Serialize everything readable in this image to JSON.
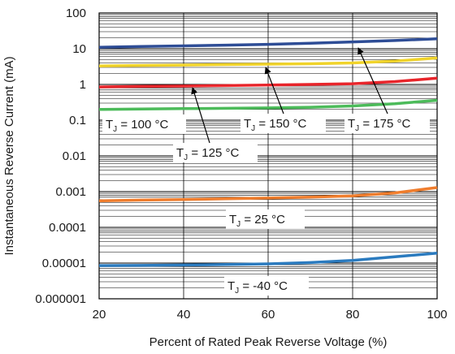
{
  "chart_data": {
    "type": "line",
    "xlabel": "Percent of Rated Peak Reverse Voltage (%)",
    "ylabel": "Instantaneous Reverse Current (mA)",
    "xlim": [
      20,
      100
    ],
    "ylim": [
      1e-06,
      100
    ],
    "yscale": "log",
    "grid": true,
    "x_ticks": [
      "20",
      "40",
      "60",
      "80",
      "100"
    ],
    "y_ticks": [
      "0.000001",
      "0.00001",
      "0.0001",
      "0.001",
      "0.01",
      "0.1",
      "1",
      "10",
      "100"
    ],
    "x": [
      20,
      30,
      40,
      50,
      60,
      70,
      80,
      90,
      100
    ],
    "series": [
      {
        "label_main": "T",
        "label_sub": "J",
        "label_rest": " = 175 °C",
        "color": "#2e4d96",
        "values": [
          11,
          11.5,
          12,
          12.6,
          13.3,
          14.2,
          15.5,
          17,
          19
        ]
      },
      {
        "label_main": "T",
        "label_sub": "J",
        "label_rest": " = 150 °C",
        "color": "#f0d32a",
        "values": [
          3.3,
          3.4,
          3.5,
          3.6,
          3.7,
          3.8,
          4.0,
          4.5,
          5.5
        ]
      },
      {
        "label_main": "T",
        "label_sub": "J",
        "label_rest": " = 125 °C",
        "color": "#e8252b",
        "values": [
          0.85,
          0.88,
          0.9,
          0.93,
          0.96,
          1.0,
          1.05,
          1.2,
          1.5
        ]
      },
      {
        "label_main": "T",
        "label_sub": "J",
        "label_rest": " = 100 °C",
        "color": "#4cbb5a",
        "values": [
          0.2,
          0.205,
          0.21,
          0.215,
          0.22,
          0.23,
          0.25,
          0.29,
          0.36
        ]
      },
      {
        "label_main": "T",
        "label_sub": "J",
        "label_rest": " = 25 °C",
        "color": "#ef7d2d",
        "values": [
          0.00055,
          0.00058,
          0.0006,
          0.00063,
          0.00066,
          0.0007,
          0.00076,
          0.00092,
          0.0013
        ]
      },
      {
        "label_main": "T",
        "label_sub": "J",
        "label_rest": " = -40 °C",
        "color": "#2b7bbf",
        "values": [
          8.5e-06,
          8.6e-06,
          8.8e-06,
          9.1e-06,
          9.5e-06,
          1.03e-05,
          1.18e-05,
          1.5e-05,
          1.9e-05
        ]
      }
    ]
  }
}
